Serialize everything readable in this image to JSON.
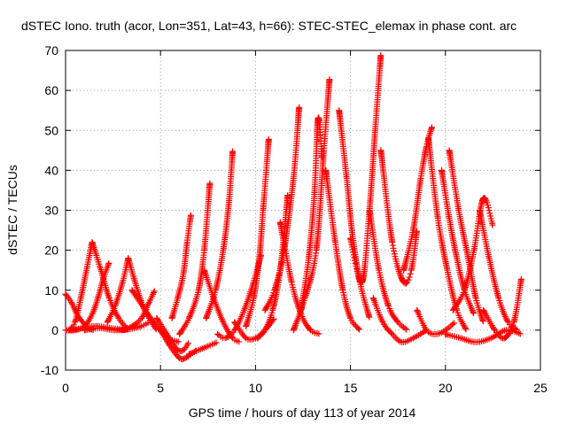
{
  "chart_data": {
    "type": "scatter",
    "title": "dSTEC Iono. truth (acor, Lon=351, Lat=43, h=66): STEC-STEC_elemax in phase cont. arc",
    "xlabel": "GPS time / hours of day 113 of year 2014",
    "ylabel": "dSTEC  / TECUs",
    "xlim": [
      0,
      25
    ],
    "ylim": [
      -10,
      70
    ],
    "x_ticks": [
      "0",
      "5",
      "10",
      "15",
      "20",
      "25"
    ],
    "y_ticks": [
      "-10",
      "0",
      "10",
      "20",
      "30",
      "40",
      "50",
      "60",
      "70"
    ],
    "grid": true,
    "legend": "none",
    "marker": "+",
    "color": "#ff0000",
    "arcs": [
      {
        "x": [
          0.0,
          0.3,
          0.6,
          0.9,
          1.2,
          1.5
        ],
        "y": [
          9,
          7,
          4,
          2,
          0.5,
          0
        ]
      },
      {
        "x": [
          0.0,
          0.5,
          1.0,
          1.4,
          1.7,
          2.0,
          2.3
        ],
        "y": [
          0,
          0,
          1,
          4,
          8,
          13,
          17
        ]
      },
      {
        "x": [
          0.2,
          0.5,
          0.8,
          1.1,
          1.4
        ],
        "y": [
          0,
          2,
          8,
          15,
          22
        ]
      },
      {
        "x": [
          1.4,
          1.8,
          2.3,
          2.8,
          3.3
        ],
        "y": [
          22,
          16,
          8,
          3,
          0
        ]
      },
      {
        "x": [
          0.3,
          0.9,
          1.6,
          2.4,
          3.2
        ],
        "y": [
          0,
          0.5,
          1,
          0.5,
          0
        ]
      },
      {
        "x": [
          1.0,
          1.8,
          2.6,
          3.4,
          4.0,
          4.4
        ],
        "y": [
          0,
          0.5,
          0,
          0.3,
          1,
          2
        ]
      },
      {
        "x": [
          2.2,
          2.6,
          3.0,
          3.3
        ],
        "y": [
          2,
          6,
          12,
          18
        ]
      },
      {
        "x": [
          3.3,
          3.6,
          4.0,
          4.4,
          4.8
        ],
        "y": [
          18,
          13,
          7,
          3,
          0
        ]
      },
      {
        "x": [
          3.0,
          3.5,
          4.0,
          4.4,
          4.7
        ],
        "y": [
          0,
          1,
          3,
          7,
          10
        ]
      },
      {
        "x": [
          3.5,
          4.2,
          4.8,
          5.4,
          6.0
        ],
        "y": [
          10,
          5,
          1,
          -2,
          -3
        ]
      },
      {
        "x": [
          4.8,
          5.2,
          5.6,
          5.9,
          6.2,
          6.5
        ],
        "y": [
          3,
          0,
          -3,
          -5,
          -5,
          -3
        ]
      },
      {
        "x": [
          5.0,
          5.5,
          6.0,
          6.3,
          6.6,
          6.9
        ],
        "y": [
          0,
          -4,
          -7,
          -7,
          -6,
          -5
        ]
      },
      {
        "x": [
          5.6,
          5.9,
          6.2,
          6.4,
          6.6
        ],
        "y": [
          3,
          8,
          14,
          22,
          29
        ]
      },
      {
        "x": [
          6.0,
          6.5,
          7.0,
          7.3,
          7.6
        ],
        "y": [
          -1,
          3,
          10,
          20,
          37
        ]
      },
      {
        "x": [
          6.5,
          7.0,
          7.5,
          8.0
        ],
        "y": [
          -6,
          -5,
          -4,
          -3
        ]
      },
      {
        "x": [
          7.3,
          7.8,
          8.3,
          8.8,
          9.2
        ],
        "y": [
          15,
          8,
          2,
          -2,
          -3
        ]
      },
      {
        "x": [
          7.4,
          7.9,
          8.3,
          8.6,
          8.8
        ],
        "y": [
          3,
          10,
          20,
          32,
          45
        ]
      },
      {
        "x": [
          8.0,
          8.4,
          8.9,
          9.4,
          9.9,
          10.3
        ],
        "y": [
          -1,
          -2,
          0,
          5,
          12,
          19
        ]
      },
      {
        "x": [
          8.9,
          9.5,
          10.0,
          10.5,
          11.0
        ],
        "y": [
          2,
          -2,
          -2,
          0,
          3
        ]
      },
      {
        "x": [
          9.5,
          9.9,
          10.2,
          10.4,
          10.7
        ],
        "y": [
          1,
          8,
          18,
          30,
          48
        ]
      },
      {
        "x": [
          10.1,
          10.5,
          10.9,
          11.3,
          11.7
        ],
        "y": [
          -2,
          0,
          5,
          15,
          34
        ]
      },
      {
        "x": [
          10.5,
          11.0,
          11.5,
          12.0,
          12.3
        ],
        "y": [
          5,
          10,
          20,
          38,
          56
        ]
      },
      {
        "x": [
          11.3,
          11.9,
          12.4,
          12.9,
          13.4
        ],
        "y": [
          27,
          12,
          4,
          0,
          -1
        ]
      },
      {
        "x": [
          12.0,
          12.6,
          13.2,
          13.6,
          13.9
        ],
        "y": [
          0,
          8,
          20,
          45,
          63
        ]
      },
      {
        "x": [
          12.4,
          12.8,
          13.1,
          13.3,
          13.5
        ],
        "y": [
          5,
          18,
          34,
          53,
          43
        ]
      },
      {
        "x": [
          13.7,
          14.2,
          14.6,
          15.0,
          15.5
        ],
        "y": [
          40,
          22,
          10,
          3,
          0
        ]
      },
      {
        "x": [
          14.4,
          14.8,
          15.1,
          15.5,
          16.0
        ],
        "y": [
          55,
          38,
          24,
          12,
          3
        ]
      },
      {
        "x": [
          15.0,
          15.6,
          16.0,
          16.3,
          16.6
        ],
        "y": [
          23,
          12,
          30,
          50,
          69
        ]
      },
      {
        "x": [
          16.0,
          16.5,
          17.0,
          17.5,
          18.0
        ],
        "y": [
          30,
          15,
          6,
          2,
          0
        ]
      },
      {
        "x": [
          16.2,
          16.7,
          17.2,
          17.7,
          18.3,
          19.0
        ],
        "y": [
          8,
          2,
          -1,
          -3,
          -2,
          0
        ]
      },
      {
        "x": [
          16.6,
          17.2,
          17.8,
          18.2,
          18.5
        ],
        "y": [
          45,
          22,
          12,
          15,
          25
        ]
      },
      {
        "x": [
          17.8,
          18.3,
          18.7,
          19.0,
          19.3
        ],
        "y": [
          15,
          25,
          38,
          46,
          51
        ]
      },
      {
        "x": [
          18.5,
          19.0,
          19.5,
          20.0,
          20.5
        ],
        "y": [
          5,
          0,
          -1,
          0,
          2
        ]
      },
      {
        "x": [
          19.1,
          19.6,
          20.1,
          20.6,
          21.1
        ],
        "y": [
          48,
          28,
          15,
          5,
          0
        ]
      },
      {
        "x": [
          19.8,
          20.2,
          20.6,
          21.0,
          21.5
        ],
        "y": [
          40,
          28,
          18,
          10,
          4
        ]
      },
      {
        "x": [
          20.2,
          20.7,
          21.2,
          21.6,
          22.0
        ],
        "y": [
          45,
          30,
          18,
          8,
          2
        ]
      },
      {
        "x": [
          20.4,
          21.0,
          21.5,
          22.0,
          22.5
        ],
        "y": [
          5,
          10,
          20,
          33,
          26
        ]
      },
      {
        "x": [
          21.8,
          22.3,
          22.8,
          23.3,
          23.8
        ],
        "y": [
          30,
          18,
          8,
          2,
          0
        ]
      },
      {
        "x": [
          22.0,
          22.6,
          23.1,
          23.6,
          24.0
        ],
        "y": [
          5,
          0,
          -2,
          2,
          13
        ]
      },
      {
        "x": [
          20.0,
          20.8,
          21.6,
          22.4,
          23.2,
          24.0
        ],
        "y": [
          -1,
          -2,
          -3,
          -2,
          0,
          -1
        ]
      }
    ]
  }
}
